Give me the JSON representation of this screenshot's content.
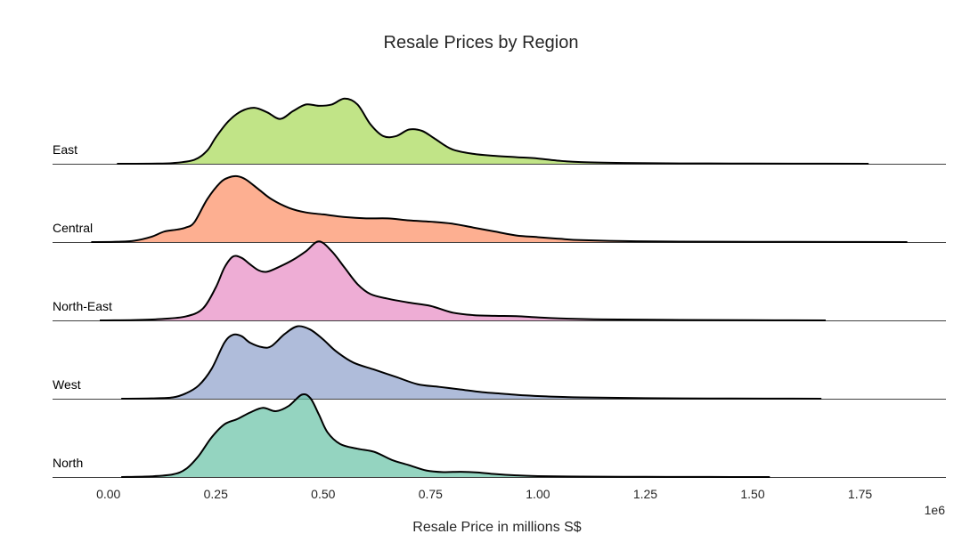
{
  "chart_data": {
    "type": "area",
    "subtype": "ridgeline",
    "title": "Resale Prices by Region",
    "xlabel": "Resale Price in millions S$",
    "x_offset_label": "1e6",
    "xlim": [
      -0.13,
      1.95
    ],
    "xticks": [
      "0.00",
      "0.25",
      "0.50",
      "0.75",
      "1.00",
      "1.25",
      "1.50",
      "1.75"
    ],
    "xtick_values": [
      0.0,
      0.25,
      0.5,
      0.75,
      1.0,
      1.25,
      1.5,
      1.75
    ],
    "grid": false,
    "series": [
      {
        "name": "East",
        "color": "#a6d854",
        "density": [
          [
            0.02,
            0
          ],
          [
            0.1,
            0.002
          ],
          [
            0.15,
            0.01
          ],
          [
            0.2,
            0.06
          ],
          [
            0.23,
            0.2
          ],
          [
            0.25,
            0.4
          ],
          [
            0.28,
            0.65
          ],
          [
            0.31,
            0.8
          ],
          [
            0.34,
            0.85
          ],
          [
            0.37,
            0.78
          ],
          [
            0.4,
            0.68
          ],
          [
            0.43,
            0.8
          ],
          [
            0.46,
            0.9
          ],
          [
            0.49,
            0.88
          ],
          [
            0.52,
            0.9
          ],
          [
            0.55,
            0.99
          ],
          [
            0.58,
            0.9
          ],
          [
            0.61,
            0.6
          ],
          [
            0.64,
            0.42
          ],
          [
            0.67,
            0.42
          ],
          [
            0.7,
            0.52
          ],
          [
            0.73,
            0.5
          ],
          [
            0.76,
            0.38
          ],
          [
            0.8,
            0.22
          ],
          [
            0.85,
            0.15
          ],
          [
            0.9,
            0.12
          ],
          [
            0.95,
            0.1
          ],
          [
            1.0,
            0.08
          ],
          [
            1.05,
            0.045
          ],
          [
            1.1,
            0.025
          ],
          [
            1.2,
            0.012
          ],
          [
            1.3,
            0.006
          ],
          [
            1.45,
            0.004
          ],
          [
            1.6,
            0.002
          ],
          [
            1.77,
            0
          ]
        ]
      },
      {
        "name": "Central",
        "color": "#fc8d62",
        "density": [
          [
            -0.04,
            0
          ],
          [
            0.02,
            0.005
          ],
          [
            0.06,
            0.02
          ],
          [
            0.1,
            0.08
          ],
          [
            0.13,
            0.16
          ],
          [
            0.16,
            0.19
          ],
          [
            0.18,
            0.22
          ],
          [
            0.2,
            0.3
          ],
          [
            0.23,
            0.65
          ],
          [
            0.26,
            0.9
          ],
          [
            0.28,
            0.98
          ],
          [
            0.3,
            1.0
          ],
          [
            0.32,
            0.95
          ],
          [
            0.35,
            0.8
          ],
          [
            0.38,
            0.65
          ],
          [
            0.42,
            0.52
          ],
          [
            0.46,
            0.45
          ],
          [
            0.5,
            0.42
          ],
          [
            0.55,
            0.38
          ],
          [
            0.6,
            0.36
          ],
          [
            0.65,
            0.36
          ],
          [
            0.7,
            0.33
          ],
          [
            0.75,
            0.31
          ],
          [
            0.8,
            0.28
          ],
          [
            0.85,
            0.22
          ],
          [
            0.9,
            0.16
          ],
          [
            0.95,
            0.1
          ],
          [
            1.0,
            0.075
          ],
          [
            1.05,
            0.05
          ],
          [
            1.1,
            0.03
          ],
          [
            1.2,
            0.015
          ],
          [
            1.3,
            0.008
          ],
          [
            1.5,
            0.004
          ],
          [
            1.7,
            0.002
          ],
          [
            1.86,
            0
          ]
        ]
      },
      {
        "name": "North-East",
        "color": "#e78ac3",
        "density": [
          [
            -0.02,
            0
          ],
          [
            0.06,
            0.005
          ],
          [
            0.12,
            0.02
          ],
          [
            0.18,
            0.06
          ],
          [
            0.22,
            0.18
          ],
          [
            0.25,
            0.5
          ],
          [
            0.27,
            0.8
          ],
          [
            0.29,
            0.97
          ],
          [
            0.31,
            0.95
          ],
          [
            0.33,
            0.85
          ],
          [
            0.35,
            0.76
          ],
          [
            0.37,
            0.74
          ],
          [
            0.4,
            0.82
          ],
          [
            0.43,
            0.92
          ],
          [
            0.46,
            1.05
          ],
          [
            0.49,
            1.2
          ],
          [
            0.52,
            1.05
          ],
          [
            0.55,
            0.8
          ],
          [
            0.58,
            0.55
          ],
          [
            0.61,
            0.4
          ],
          [
            0.65,
            0.33
          ],
          [
            0.7,
            0.27
          ],
          [
            0.75,
            0.22
          ],
          [
            0.8,
            0.12
          ],
          [
            0.85,
            0.08
          ],
          [
            0.9,
            0.07
          ],
          [
            0.95,
            0.065
          ],
          [
            1.0,
            0.045
          ],
          [
            1.05,
            0.03
          ],
          [
            1.15,
            0.015
          ],
          [
            1.3,
            0.008
          ],
          [
            1.5,
            0.003
          ],
          [
            1.67,
            0
          ]
        ]
      },
      {
        "name": "West",
        "color": "#8da0cb",
        "density": [
          [
            0.03,
            0
          ],
          [
            0.1,
            0.005
          ],
          [
            0.15,
            0.02
          ],
          [
            0.18,
            0.08
          ],
          [
            0.21,
            0.2
          ],
          [
            0.24,
            0.45
          ],
          [
            0.27,
            0.85
          ],
          [
            0.29,
            0.97
          ],
          [
            0.31,
            0.95
          ],
          [
            0.33,
            0.85
          ],
          [
            0.36,
            0.78
          ],
          [
            0.38,
            0.8
          ],
          [
            0.41,
            0.98
          ],
          [
            0.44,
            1.1
          ],
          [
            0.47,
            1.05
          ],
          [
            0.5,
            0.9
          ],
          [
            0.53,
            0.72
          ],
          [
            0.57,
            0.55
          ],
          [
            0.62,
            0.44
          ],
          [
            0.67,
            0.33
          ],
          [
            0.72,
            0.22
          ],
          [
            0.77,
            0.18
          ],
          [
            0.82,
            0.14
          ],
          [
            0.87,
            0.1
          ],
          [
            0.92,
            0.075
          ],
          [
            0.97,
            0.05
          ],
          [
            1.02,
            0.035
          ],
          [
            1.1,
            0.02
          ],
          [
            1.25,
            0.008
          ],
          [
            1.45,
            0.003
          ],
          [
            1.66,
            0
          ]
        ]
      },
      {
        "name": "North",
        "color": "#66c2a5",
        "density": [
          [
            0.03,
            0
          ],
          [
            0.1,
            0.01
          ],
          [
            0.15,
            0.04
          ],
          [
            0.18,
            0.12
          ],
          [
            0.21,
            0.32
          ],
          [
            0.24,
            0.6
          ],
          [
            0.27,
            0.8
          ],
          [
            0.3,
            0.88
          ],
          [
            0.33,
            0.98
          ],
          [
            0.36,
            1.05
          ],
          [
            0.39,
            1.0
          ],
          [
            0.42,
            1.08
          ],
          [
            0.45,
            1.25
          ],
          [
            0.47,
            1.2
          ],
          [
            0.49,
            0.95
          ],
          [
            0.51,
            0.68
          ],
          [
            0.54,
            0.5
          ],
          [
            0.58,
            0.43
          ],
          [
            0.62,
            0.38
          ],
          [
            0.66,
            0.26
          ],
          [
            0.7,
            0.18
          ],
          [
            0.74,
            0.1
          ],
          [
            0.78,
            0.075
          ],
          [
            0.82,
            0.08
          ],
          [
            0.86,
            0.07
          ],
          [
            0.9,
            0.045
          ],
          [
            0.95,
            0.025
          ],
          [
            1.0,
            0.014
          ],
          [
            1.1,
            0.006
          ],
          [
            1.25,
            0.003
          ],
          [
            1.4,
            0.001
          ],
          [
            1.54,
            0
          ]
        ]
      }
    ]
  }
}
